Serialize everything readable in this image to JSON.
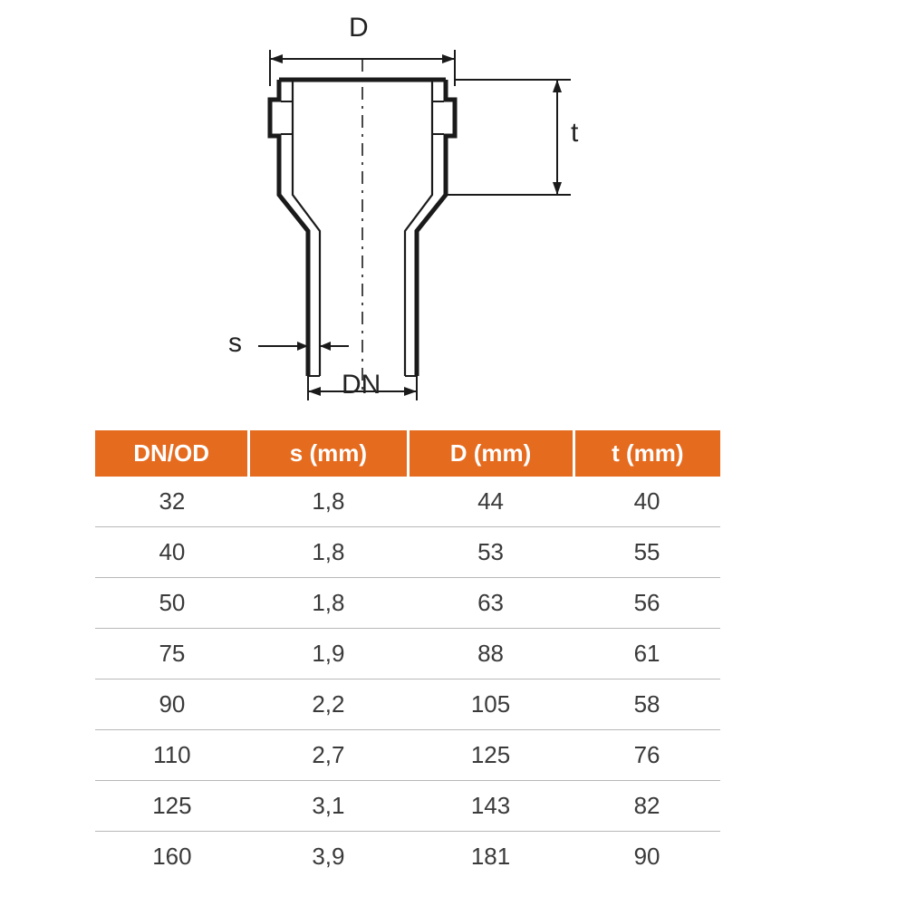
{
  "diagram": {
    "labels": {
      "D": "D",
      "t": "t",
      "s": "s",
      "DN": "DN"
    },
    "stroke_color": "#1a1a1a",
    "stroke_width_main": 4,
    "stroke_width_dim": 2,
    "dash_pattern": "10,6,3,6",
    "label_fontsize": 30,
    "label_color": "#222222"
  },
  "table": {
    "header_bg": "#e56b1f",
    "header_text_color": "#ffffff",
    "header_fontsize": 26,
    "cell_fontsize": 26,
    "cell_text_color": "#3a3a3a",
    "row_border_color": "#b8b8b8",
    "columns": [
      "DN/OD",
      "s (mm)",
      "D (mm)",
      "t (mm)"
    ],
    "rows": [
      [
        "32",
        "1,8",
        "44",
        "40"
      ],
      [
        "40",
        "1,8",
        "53",
        "55"
      ],
      [
        "50",
        "1,8",
        "63",
        "56"
      ],
      [
        "75",
        "1,9",
        "88",
        "61"
      ],
      [
        "90",
        "2,2",
        "105",
        "58"
      ],
      [
        "110",
        "2,7",
        "125",
        "76"
      ],
      [
        "125",
        "3,1",
        "143",
        "82"
      ],
      [
        "160",
        "3,9",
        "181",
        "90"
      ]
    ]
  }
}
